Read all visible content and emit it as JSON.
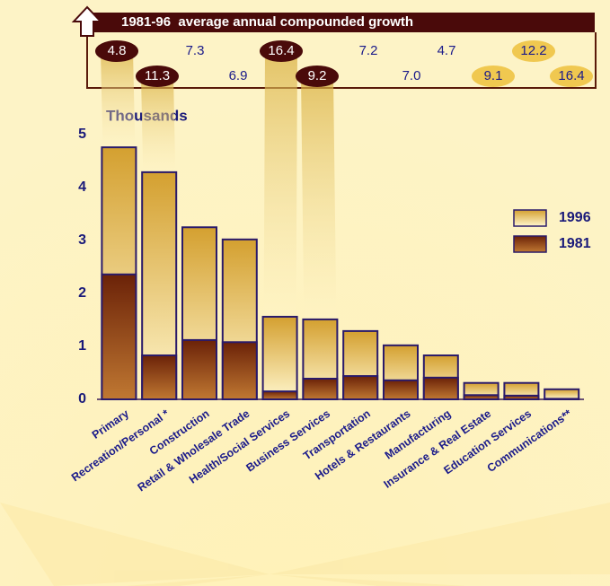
{
  "chart_data": {
    "type": "bar",
    "growth_title": "1981-96  average annual compounded growth",
    "ylabel": "Thousands",
    "categories": [
      "Primary",
      "Recreation/Personal *",
      "Construction",
      "Retail & Wholesale Trade",
      "Health/Social Services",
      "Business Services",
      "Transportation",
      "Hotels & Restaurants",
      "Manufacturing",
      "Insurance & Real Estate",
      "Education Services",
      "Communications**"
    ],
    "series": [
      {
        "name": "1996",
        "color": "#d4a030",
        "values": [
          4.76,
          4.29,
          3.25,
          3.02,
          1.56,
          1.51,
          1.29,
          1.02,
          0.83,
          0.31,
          0.31,
          0.19
        ]
      },
      {
        "name": "1981",
        "color": "#6b2208",
        "values": [
          2.36,
          0.83,
          1.12,
          1.08,
          0.15,
          0.39,
          0.44,
          0.36,
          0.41,
          0.08,
          0.07,
          0.01
        ]
      }
    ],
    "growth": {
      "values": [
        4.8,
        11.3,
        7.3,
        6.9,
        16.4,
        9.2,
        7.2,
        7.0,
        4.7,
        9.1,
        12.2,
        16.4
      ],
      "value_labels": [
        "4.8",
        "11.3",
        "7.3",
        "6.9",
        "16.4",
        "9.2",
        "7.2",
        "7.0",
        "4.7",
        "9.1",
        "12.2",
        "16.4"
      ],
      "highlight": [
        "#4a0a0a",
        "#4a0a0a",
        null,
        null,
        "#4a0a0a",
        "#4a0a0a",
        null,
        null,
        null,
        "#f0c850",
        "#f0c850",
        "#f0c850"
      ]
    },
    "ylim": [
      0,
      5
    ],
    "yticks": [
      0,
      1,
      2,
      3,
      4,
      5
    ],
    "legend": "right"
  }
}
